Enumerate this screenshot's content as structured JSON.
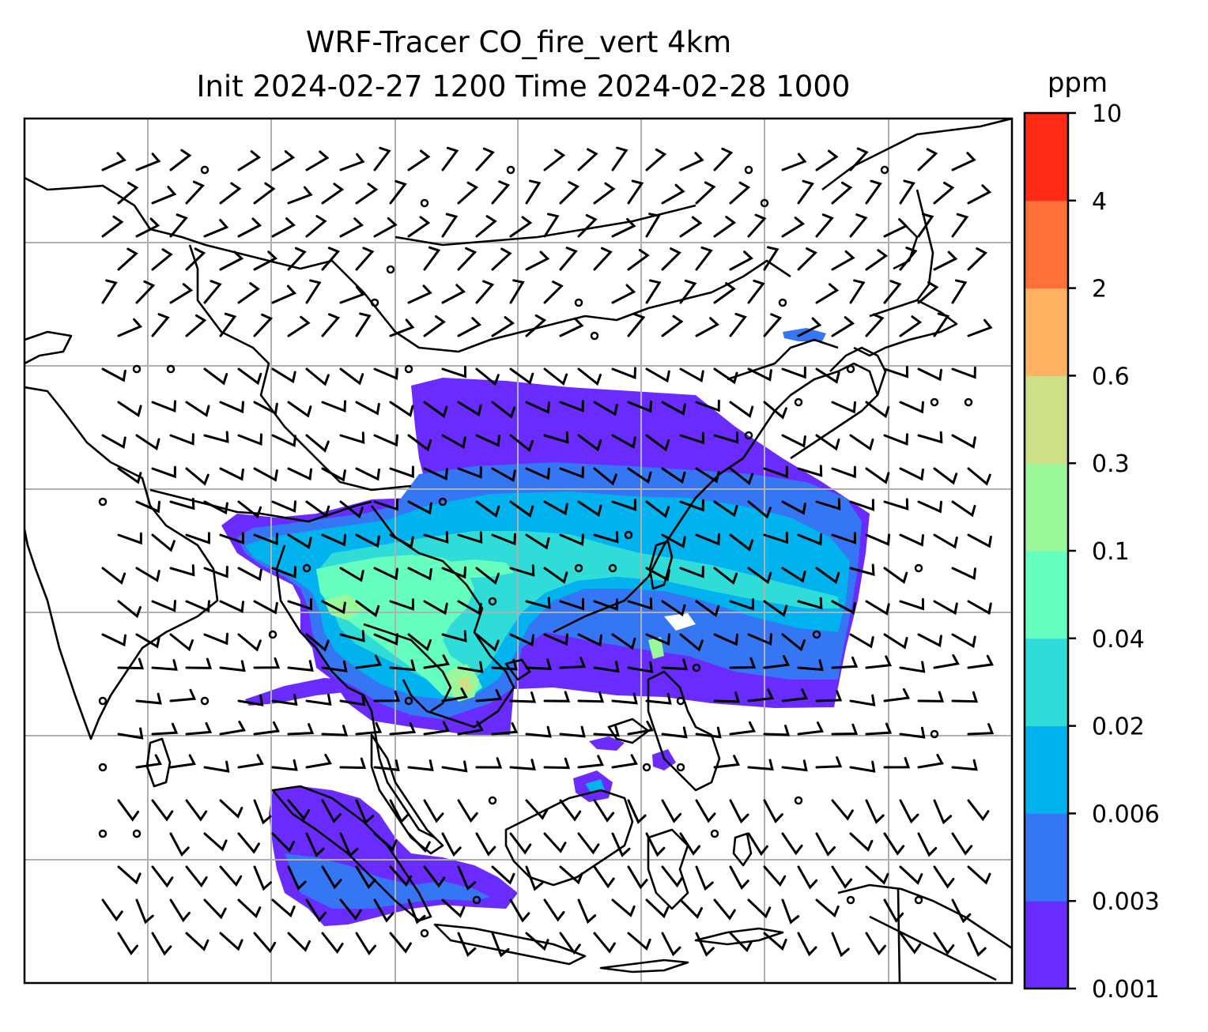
{
  "figure": {
    "title_line1": "WRF-Tracer CO_fire_vert 4km",
    "title_line2": "Init 2024-02-27 1200 Time 2024-02-28 1000"
  },
  "colorbar": {
    "unit": "ppm",
    "ticks": [
      "0.001",
      "0.003",
      "0.006",
      "0.02",
      "0.04",
      "0.1",
      "0.3",
      "0.6",
      "2",
      "4",
      "10"
    ],
    "colors": [
      "#6a2bff",
      "#3576f4",
      "#00b2ee",
      "#2fdcd8",
      "#66ffc0",
      "#9af89a",
      "#cde085",
      "#ffb060",
      "#ff7038",
      "#ff2a16"
    ]
  },
  "map": {
    "gridlines": true,
    "field": "CO_fire_vert",
    "plume_colors": {
      "lowest": "#6a2bff",
      "low": "#3576f4",
      "mid": "#00b2ee",
      "mid2": "#2fdcd8",
      "high": "#66ffc0",
      "higher": "#9af89a",
      "peak": "#cde085"
    },
    "colors": {
      "coast": "#000000",
      "grid": "#b0b0b0",
      "barb": "#000000"
    }
  }
}
